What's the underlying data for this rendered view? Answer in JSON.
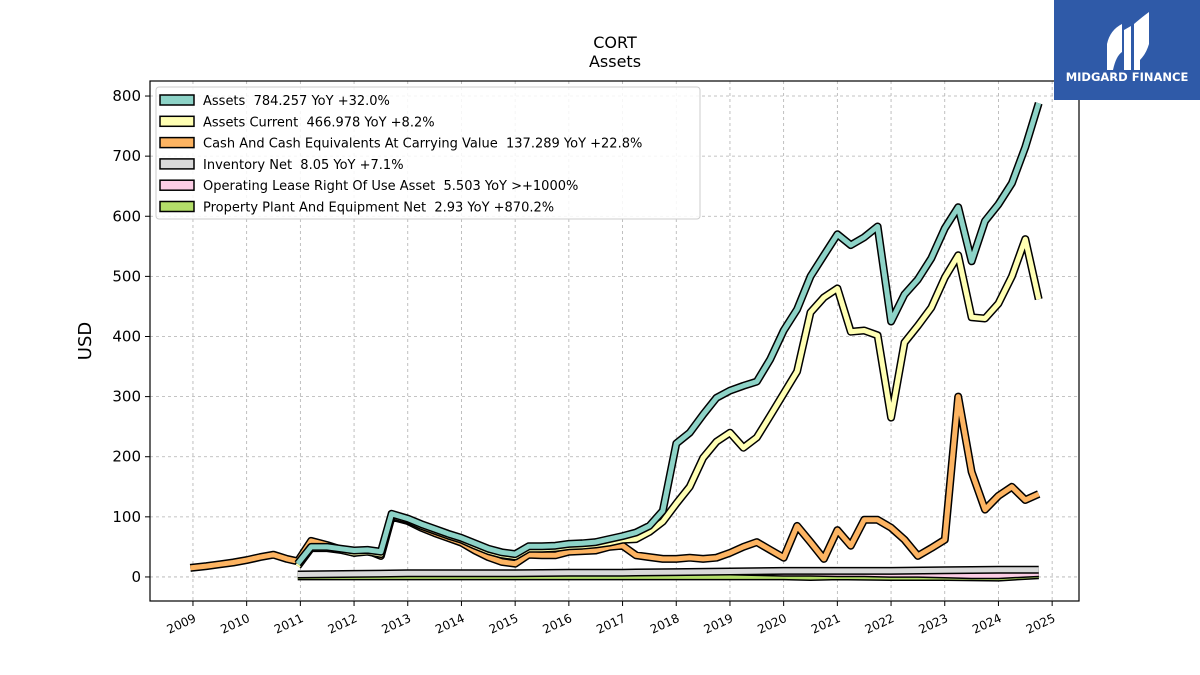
{
  "brand": {
    "name": "MIDGARD FINANCE",
    "background_color": "#2f5aa8"
  },
  "chart_data": {
    "type": "line",
    "title": "CORT",
    "subtitle": "Assets",
    "xlabel": "",
    "ylabel": "USD",
    "xlim": [
      2008.2,
      2025.5
    ],
    "ylim": [
      -40,
      825
    ],
    "x_ticks": [
      "2009",
      "2010",
      "2011",
      "2012",
      "2013",
      "2014",
      "2015",
      "2016",
      "2017",
      "2018",
      "2019",
      "2020",
      "2021",
      "2022",
      "2023",
      "2024",
      "2025"
    ],
    "y_ticks": [
      0,
      100,
      200,
      300,
      400,
      500,
      600,
      700,
      800
    ],
    "grid": true,
    "legend_position": "top-left",
    "series": [
      {
        "name": "Assets  784.257 YoY +32.0%",
        "color": "#8dd3c7",
        "points": [
          [
            2010.95,
            22
          ],
          [
            2011.2,
            50
          ],
          [
            2011.5,
            50
          ],
          [
            2011.75,
            47
          ],
          [
            2012.0,
            44
          ],
          [
            2012.25,
            45
          ],
          [
            2012.5,
            42
          ],
          [
            2012.7,
            105
          ],
          [
            2013.0,
            97
          ],
          [
            2013.25,
            88
          ],
          [
            2013.5,
            80
          ],
          [
            2013.75,
            72
          ],
          [
            2014.0,
            65
          ],
          [
            2014.25,
            56
          ],
          [
            2014.5,
            47
          ],
          [
            2014.75,
            41
          ],
          [
            2015.0,
            38
          ],
          [
            2015.25,
            51
          ],
          [
            2015.5,
            51
          ],
          [
            2015.75,
            52
          ],
          [
            2016.0,
            55
          ],
          [
            2016.25,
            56
          ],
          [
            2016.5,
            58
          ],
          [
            2016.75,
            63
          ],
          [
            2017.0,
            68
          ],
          [
            2017.25,
            74
          ],
          [
            2017.5,
            85
          ],
          [
            2017.75,
            110
          ],
          [
            2018.0,
            222
          ],
          [
            2018.25,
            240
          ],
          [
            2018.5,
            270
          ],
          [
            2018.75,
            298
          ],
          [
            2019.0,
            310
          ],
          [
            2019.25,
            318
          ],
          [
            2019.5,
            325
          ],
          [
            2019.75,
            362
          ],
          [
            2020.0,
            410
          ],
          [
            2020.25,
            445
          ],
          [
            2020.5,
            500
          ],
          [
            2020.75,
            535
          ],
          [
            2021.0,
            570
          ],
          [
            2021.25,
            552
          ],
          [
            2021.5,
            565
          ],
          [
            2021.75,
            583
          ],
          [
            2022.0,
            425
          ],
          [
            2022.25,
            470
          ],
          [
            2022.5,
            495
          ],
          [
            2022.75,
            530
          ],
          [
            2023.0,
            580
          ],
          [
            2023.25,
            615
          ],
          [
            2023.5,
            525
          ],
          [
            2023.75,
            592
          ],
          [
            2024.0,
            620
          ],
          [
            2024.25,
            655
          ],
          [
            2024.5,
            715
          ],
          [
            2024.75,
            788
          ]
        ]
      },
      {
        "name": "Assets Current  466.978 YoY +8.2%",
        "color": "#ffffb3",
        "points": [
          [
            2010.95,
            18
          ],
          [
            2011.2,
            48
          ],
          [
            2011.5,
            48
          ],
          [
            2011.75,
            45
          ],
          [
            2012.0,
            40
          ],
          [
            2012.25,
            42
          ],
          [
            2012.5,
            38
          ],
          [
            2012.7,
            102
          ],
          [
            2013.0,
            95
          ],
          [
            2013.25,
            85
          ],
          [
            2013.5,
            77
          ],
          [
            2013.75,
            69
          ],
          [
            2014.0,
            62
          ],
          [
            2014.25,
            52
          ],
          [
            2014.5,
            43
          ],
          [
            2014.75,
            37
          ],
          [
            2015.0,
            34
          ],
          [
            2015.25,
            47
          ],
          [
            2015.5,
            47
          ],
          [
            2015.75,
            48
          ],
          [
            2016.0,
            51
          ],
          [
            2016.25,
            52
          ],
          [
            2016.5,
            54
          ],
          [
            2016.75,
            57
          ],
          [
            2017.0,
            62
          ],
          [
            2017.25,
            63
          ],
          [
            2017.5,
            75
          ],
          [
            2017.75,
            92
          ],
          [
            2018.0,
            122
          ],
          [
            2018.25,
            150
          ],
          [
            2018.5,
            198
          ],
          [
            2018.75,
            225
          ],
          [
            2019.0,
            240
          ],
          [
            2019.25,
            215
          ],
          [
            2019.5,
            232
          ],
          [
            2019.75,
            268
          ],
          [
            2020.0,
            305
          ],
          [
            2020.25,
            342
          ],
          [
            2020.5,
            440
          ],
          [
            2020.75,
            465
          ],
          [
            2021.0,
            480
          ],
          [
            2021.25,
            408
          ],
          [
            2021.5,
            410
          ],
          [
            2021.75,
            402
          ],
          [
            2022.0,
            265
          ],
          [
            2022.25,
            390
          ],
          [
            2022.5,
            418
          ],
          [
            2022.75,
            448
          ],
          [
            2023.0,
            498
          ],
          [
            2023.25,
            535
          ],
          [
            2023.5,
            432
          ],
          [
            2023.75,
            430
          ],
          [
            2024.0,
            455
          ],
          [
            2024.25,
            500
          ],
          [
            2024.5,
            562
          ],
          [
            2024.75,
            462
          ]
        ]
      },
      {
        "name": "Cash And Cash Equivalents At Carrying Value  137.289 YoY +22.8%",
        "color": "#fdb462",
        "points": [
          [
            2008.95,
            15
          ],
          [
            2009.25,
            18
          ],
          [
            2009.5,
            21
          ],
          [
            2009.75,
            24
          ],
          [
            2010.0,
            28
          ],
          [
            2010.25,
            33
          ],
          [
            2010.5,
            37
          ],
          [
            2010.75,
            30
          ],
          [
            2010.95,
            26
          ],
          [
            2011.2,
            60
          ],
          [
            2011.5,
            53
          ],
          [
            2011.75,
            46
          ],
          [
            2012.0,
            40
          ],
          [
            2012.25,
            44
          ],
          [
            2012.5,
            35
          ],
          [
            2012.7,
            100
          ],
          [
            2013.0,
            93
          ],
          [
            2013.25,
            82
          ],
          [
            2013.5,
            73
          ],
          [
            2013.75,
            65
          ],
          [
            2014.0,
            57
          ],
          [
            2014.25,
            44
          ],
          [
            2014.5,
            33
          ],
          [
            2014.75,
            25
          ],
          [
            2015.0,
            22
          ],
          [
            2015.25,
            37
          ],
          [
            2015.5,
            36
          ],
          [
            2015.75,
            36
          ],
          [
            2016.0,
            42
          ],
          [
            2016.25,
            43
          ],
          [
            2016.5,
            44
          ],
          [
            2016.75,
            50
          ],
          [
            2017.0,
            52
          ],
          [
            2017.25,
            36
          ],
          [
            2017.5,
            33
          ],
          [
            2017.75,
            30
          ],
          [
            2018.0,
            30
          ],
          [
            2018.25,
            32
          ],
          [
            2018.5,
            30
          ],
          [
            2018.75,
            32
          ],
          [
            2019.0,
            40
          ],
          [
            2019.25,
            50
          ],
          [
            2019.5,
            58
          ],
          [
            2019.75,
            45
          ],
          [
            2020.0,
            32
          ],
          [
            2020.25,
            85
          ],
          [
            2020.5,
            58
          ],
          [
            2020.75,
            30
          ],
          [
            2021.0,
            78
          ],
          [
            2021.25,
            52
          ],
          [
            2021.5,
            95
          ],
          [
            2021.75,
            95
          ],
          [
            2022.0,
            82
          ],
          [
            2022.25,
            62
          ],
          [
            2022.5,
            35
          ],
          [
            2022.75,
            48
          ],
          [
            2023.0,
            62
          ],
          [
            2023.25,
            300
          ],
          [
            2023.5,
            175
          ],
          [
            2023.75,
            112
          ],
          [
            2024.0,
            135
          ],
          [
            2024.25,
            150
          ],
          [
            2024.5,
            128
          ],
          [
            2024.75,
            138
          ]
        ]
      },
      {
        "name": "Inventory Net  8.05 YoY +7.1%",
        "color": "#d9d9d9",
        "points": [
          [
            2010.95,
            4
          ],
          [
            2012.0,
            5
          ],
          [
            2013.0,
            6
          ],
          [
            2014.0,
            6
          ],
          [
            2015.0,
            6
          ],
          [
            2016.0,
            7
          ],
          [
            2017.0,
            7
          ],
          [
            2018.0,
            8
          ],
          [
            2019.0,
            9
          ],
          [
            2020.0,
            10
          ],
          [
            2021.0,
            10
          ],
          [
            2022.0,
            10
          ],
          [
            2023.0,
            11
          ],
          [
            2024.0,
            12
          ],
          [
            2024.75,
            12
          ]
        ]
      },
      {
        "name": "Operating Lease Right Of Use Asset  5.503 YoY >+1000%",
        "color": "#fccde5",
        "points": [
          [
            2019.0,
            9
          ],
          [
            2019.5,
            8
          ],
          [
            2020.0,
            7
          ],
          [
            2020.5,
            7
          ],
          [
            2021.0,
            6
          ],
          [
            2021.5,
            6
          ],
          [
            2022.0,
            5
          ],
          [
            2022.5,
            5
          ],
          [
            2023.0,
            4
          ],
          [
            2023.5,
            3
          ],
          [
            2024.0,
            3
          ],
          [
            2024.5,
            5
          ],
          [
            2024.75,
            6
          ]
        ]
      },
      {
        "name": "Property Plant And Equipment Net  2.93 YoY +870.2%",
        "color": "#b3de69",
        "points": [
          [
            2010.95,
            1
          ],
          [
            2012.0,
            1
          ],
          [
            2013.0,
            1
          ],
          [
            2014.0,
            1
          ],
          [
            2015.0,
            1
          ],
          [
            2016.0,
            1
          ],
          [
            2017.0,
            1
          ],
          [
            2018.0,
            1
          ],
          [
            2019.0,
            1
          ],
          [
            2020.0,
            1
          ],
          [
            2020.5,
            0
          ],
          [
            2021.0,
            1
          ],
          [
            2022.0,
            0
          ],
          [
            2023.0,
            0
          ],
          [
            2024.0,
            -1
          ],
          [
            2024.75,
            3
          ]
        ]
      }
    ]
  }
}
